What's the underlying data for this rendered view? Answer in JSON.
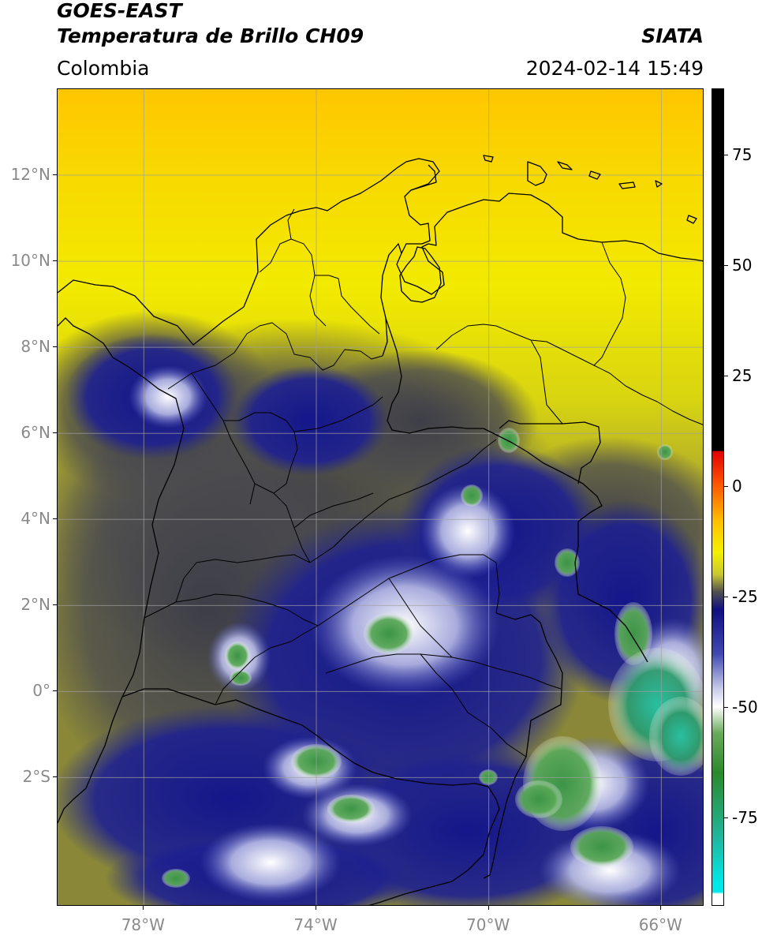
{
  "header": {
    "satellite": "GOES-EAST",
    "product": "Temperatura de Brillo CH09",
    "agency": "SIATA",
    "region": "Colombia",
    "datetime": "2024-02-14 15:49"
  },
  "map": {
    "lon_range": [
      -80,
      -65
    ],
    "lat_range": [
      -5,
      14
    ],
    "grid": true,
    "lon_ticks": [
      {
        "value": -78,
        "label": "78°W"
      },
      {
        "value": -74,
        "label": "74°W"
      },
      {
        "value": -70,
        "label": "70°W"
      },
      {
        "value": -66,
        "label": "66°W"
      }
    ],
    "lat_ticks": [
      {
        "value": 12,
        "label": "12°N"
      },
      {
        "value": 10,
        "label": "10°N"
      },
      {
        "value": 8,
        "label": "8°N"
      },
      {
        "value": 6,
        "label": "6°N"
      },
      {
        "value": 4,
        "label": "4°N"
      },
      {
        "value": 2,
        "label": "2°N"
      },
      {
        "value": 0,
        "label": "0°"
      },
      {
        "value": -2,
        "label": "2°S"
      }
    ]
  },
  "colorbar": {
    "range": [
      -95,
      90
    ],
    "ticks": [
      {
        "value": 75,
        "label": "75"
      },
      {
        "value": 50,
        "label": "50"
      },
      {
        "value": 25,
        "label": "25"
      },
      {
        "value": 0,
        "label": "0"
      },
      {
        "value": -25,
        "label": "-25"
      },
      {
        "value": -50,
        "label": "-50"
      },
      {
        "value": -75,
        "label": "-75"
      }
    ],
    "stops": [
      {
        "value": 90,
        "color": "#000000"
      },
      {
        "value": 8,
        "color": "#000000"
      },
      {
        "value": 7.9,
        "color": "#e00000"
      },
      {
        "value": 0,
        "color": "#ff5a00"
      },
      {
        "value": -8,
        "color": "#ffc000"
      },
      {
        "value": -15,
        "color": "#f4f000"
      },
      {
        "value": -20,
        "color": "#c8c830"
      },
      {
        "value": -24,
        "color": "#505050"
      },
      {
        "value": -28,
        "color": "#101080"
      },
      {
        "value": -38,
        "color": "#4048b0"
      },
      {
        "value": -46,
        "color": "#c8ccea"
      },
      {
        "value": -50,
        "color": "#ffffff"
      },
      {
        "value": -56,
        "color": "#6aaa5a"
      },
      {
        "value": -65,
        "color": "#2a8a2a"
      },
      {
        "value": -80,
        "color": "#20b8a0"
      },
      {
        "value": -90,
        "color": "#00e8e8"
      },
      {
        "value": -92,
        "color": "#00e8e8"
      },
      {
        "value": -92.5,
        "color": "#ffffff"
      },
      {
        "value": -95,
        "color": "#ffffff"
      }
    ]
  },
  "colors": {
    "warm_yellow": "#f2ea00",
    "orange_yellow": "#ffc400",
    "olive": "#9a9a38",
    "dark_gray": "#4c4c50",
    "navy": "#181a88",
    "cloud_white": "#dcdff2",
    "green": "#4e9a48",
    "teal": "#2ab49a",
    "border": "#000000",
    "grid": "#a0a0a0"
  }
}
